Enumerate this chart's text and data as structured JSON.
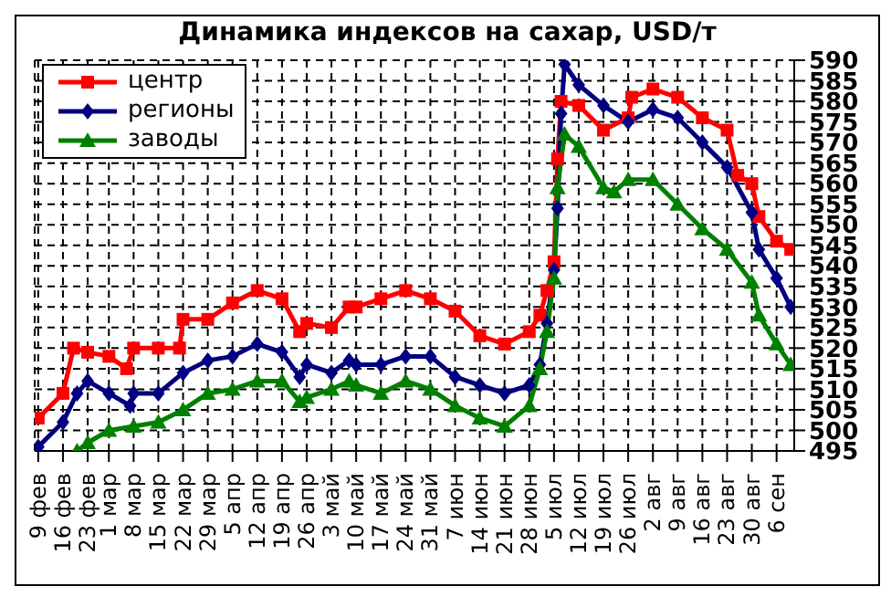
{
  "chart_data": {
    "type": "line",
    "title": "Динамика индексов на сахар, USD/т",
    "xlim": [
      "--02-08",
      "--09-11"
    ],
    "xticks": [
      {
        "value": "--02-09",
        "label": "9 фев"
      },
      {
        "value": "--02-16",
        "label": "16 фев"
      },
      {
        "value": "--02-23",
        "label": "23 фев"
      },
      {
        "value": "--03-01",
        "label": "1 мар"
      },
      {
        "value": "--03-08",
        "label": "8 мар"
      },
      {
        "value": "--03-15",
        "label": "15 мар"
      },
      {
        "value": "--03-22",
        "label": "22 мар"
      },
      {
        "value": "--03-29",
        "label": "29 мар"
      },
      {
        "value": "--04-05",
        "label": "5 апр"
      },
      {
        "value": "--04-12",
        "label": "12 апр"
      },
      {
        "value": "--04-19",
        "label": "19 апр"
      },
      {
        "value": "--04-26",
        "label": "26 апр"
      },
      {
        "value": "--05-03",
        "label": "3 май"
      },
      {
        "value": "--05-10",
        "label": "10 май"
      },
      {
        "value": "--05-17",
        "label": "17 май"
      },
      {
        "value": "--05-24",
        "label": "24 май"
      },
      {
        "value": "--05-31",
        "label": "31 май"
      },
      {
        "value": "--06-07",
        "label": "7 июн"
      },
      {
        "value": "--06-14",
        "label": "14 июн"
      },
      {
        "value": "--06-21",
        "label": "21 июн"
      },
      {
        "value": "--06-28",
        "label": "28 июн"
      },
      {
        "value": "--07-05",
        "label": "5 июл"
      },
      {
        "value": "--07-12",
        "label": "12 июл"
      },
      {
        "value": "--07-19",
        "label": "19 июл"
      },
      {
        "value": "--07-26",
        "label": "26 июл"
      },
      {
        "value": "--08-02",
        "label": "2 авг"
      },
      {
        "value": "--08-09",
        "label": "9 авг"
      },
      {
        "value": "--08-16",
        "label": "16 авг"
      },
      {
        "value": "--08-23",
        "label": "23 авг"
      },
      {
        "value": "--08-30",
        "label": "30 авг"
      },
      {
        "value": "--09-06",
        "label": "6 сен"
      }
    ],
    "ylim": [
      495,
      590
    ],
    "yticks": [
      495,
      500,
      505,
      510,
      515,
      520,
      525,
      530,
      535,
      540,
      545,
      550,
      555,
      560,
      565,
      570,
      575,
      580,
      585,
      590
    ],
    "grid": true,
    "legend": "top left",
    "line_style": "solid",
    "series": [
      {
        "name": "центр",
        "color": "#ff0000",
        "marker": "square",
        "x": [
          "--02-09",
          "--02-16",
          "--02-19",
          "--02-23",
          "--03-01",
          "--03-06",
          "--03-08",
          "--03-15",
          "--03-21",
          "--03-22",
          "--03-29",
          "--04-05",
          "--04-12",
          "--04-19",
          "--04-24",
          "--04-26",
          "--05-03",
          "--05-08",
          "--05-10",
          "--05-17",
          "--05-24",
          "--05-31",
          "--06-07",
          "--06-14",
          "--06-21",
          "--06-28",
          "--07-01",
          "--07-03",
          "--07-05",
          "--07-06",
          "--07-07",
          "--07-12",
          "--07-19",
          "--07-26",
          "--07-27",
          "--08-02",
          "--08-09",
          "--08-16",
          "--08-23",
          "--08-26",
          "--08-30",
          "--09-01",
          "--09-06",
          "--09-10"
        ],
        "values": [
          503,
          509,
          520,
          519,
          518,
          515,
          520,
          520,
          520,
          527,
          527,
          531,
          534,
          532,
          524,
          526,
          525,
          530,
          530,
          532,
          534,
          532,
          529,
          523,
          521,
          524,
          528,
          534,
          541,
          566,
          580,
          579,
          573,
          576,
          581,
          583,
          581,
          576,
          573,
          562,
          560,
          552,
          546,
          544
        ]
      },
      {
        "name": "регионы",
        "color": "#000080",
        "marker": "diamond",
        "x": [
          "--02-09",
          "--02-16",
          "--02-20",
          "--02-23",
          "--03-01",
          "--03-07",
          "--03-08",
          "--03-15",
          "--03-22",
          "--03-29",
          "--04-05",
          "--04-12",
          "--04-19",
          "--04-24",
          "--04-26",
          "--05-03",
          "--05-08",
          "--05-10",
          "--05-17",
          "--05-24",
          "--05-31",
          "--06-07",
          "--06-14",
          "--06-21",
          "--06-28",
          "--07-01",
          "--07-03",
          "--07-05",
          "--07-06",
          "--07-07",
          "--07-08",
          "--07-12",
          "--07-19",
          "--07-26",
          "--08-02",
          "--08-09",
          "--08-16",
          "--08-23",
          "--08-30",
          "--09-01",
          "--09-06",
          "--09-10"
        ],
        "values": [
          496,
          502,
          509,
          512,
          509,
          506,
          509,
          509,
          514,
          517,
          518,
          521,
          519,
          513,
          516,
          514,
          517,
          516,
          516,
          518,
          518,
          513,
          511,
          509,
          511,
          516,
          526,
          539,
          554,
          577,
          589,
          584,
          579,
          575,
          578,
          576,
          570,
          564,
          553,
          544,
          537,
          530
        ]
      },
      {
        "name": "заводы",
        "color": "#008000",
        "marker": "triangle",
        "x": [
          "--02-20",
          "--02-23",
          "--03-01",
          "--03-08",
          "--03-15",
          "--03-22",
          "--03-29",
          "--04-05",
          "--04-12",
          "--04-19",
          "--04-24",
          "--04-26",
          "--05-03",
          "--05-08",
          "--05-10",
          "--05-17",
          "--05-24",
          "--05-31",
          "--06-07",
          "--06-14",
          "--06-21",
          "--06-28",
          "--07-01",
          "--07-03",
          "--07-05",
          "--07-06",
          "--07-08",
          "--07-12",
          "--07-19",
          "--07-22",
          "--07-26",
          "--08-02",
          "--08-09",
          "--08-16",
          "--08-23",
          "--08-30",
          "--09-01",
          "--09-06",
          "--09-10"
        ],
        "values": [
          495,
          497,
          500,
          501,
          502,
          505,
          509,
          510,
          512,
          512,
          507,
          508,
          510,
          512,
          511,
          509,
          512,
          510,
          506,
          503,
          501,
          506,
          515,
          524,
          537,
          559,
          572,
          569,
          559,
          558,
          561,
          561,
          555,
          549,
          544,
          536,
          528,
          521,
          516
        ]
      }
    ]
  }
}
